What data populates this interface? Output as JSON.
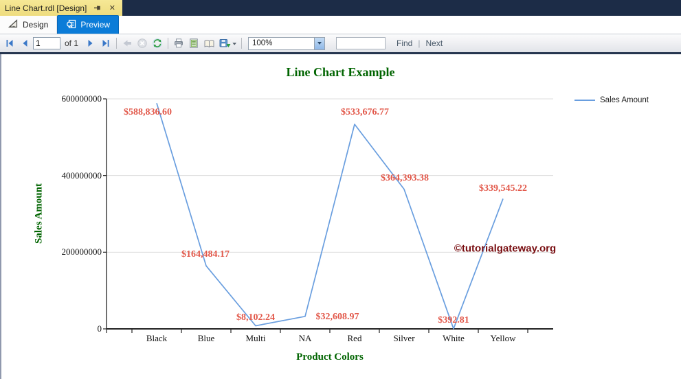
{
  "titlebar": {
    "tab_title": "Line Chart.rdl [Design]",
    "close_glyph": "✕"
  },
  "view_tabs": {
    "design": "Design",
    "preview": "Preview"
  },
  "toolbar": {
    "page": "1",
    "of": "of 1",
    "zoom": "100%",
    "search_value": "",
    "find": "Find",
    "find_next_separator": "|",
    "next": "Next"
  },
  "watermark": "©tutorialgateway.org",
  "chart_data": {
    "type": "line",
    "title": "Line Chart Example",
    "xlabel": "Product Colors",
    "ylabel": "Sales Amount",
    "legend_position": "right",
    "grid": true,
    "categories": [
      "Black",
      "Blue",
      "Multi",
      "NA",
      "Red",
      "Silver",
      "White",
      "Yellow"
    ],
    "series": [
      {
        "name": "Sales Amount",
        "values": [
          588836600,
          164484170,
          8102240,
          32608970,
          533676770,
          364393380,
          392810,
          339545220
        ],
        "point_labels": [
          "$588,836.60",
          "$164,484.17",
          "$8,102.24",
          "$32,608.97",
          "$533,676.77",
          "$364,393.38",
          "$392.81",
          "$339,545.22"
        ]
      }
    ],
    "ylim": [
      0,
      600000000
    ],
    "y_ticks": [
      0,
      200000000,
      400000000,
      600000000
    ],
    "y_tick_labels": [
      "0",
      "200000000",
      "400000000",
      "600000000"
    ],
    "line_color": "#699edf",
    "point_label_color": "#e2584a",
    "title_color": "#006400",
    "axis_title_color": "#006400",
    "gridline_color": "#dcdcdc",
    "axis_color": "#222222"
  }
}
